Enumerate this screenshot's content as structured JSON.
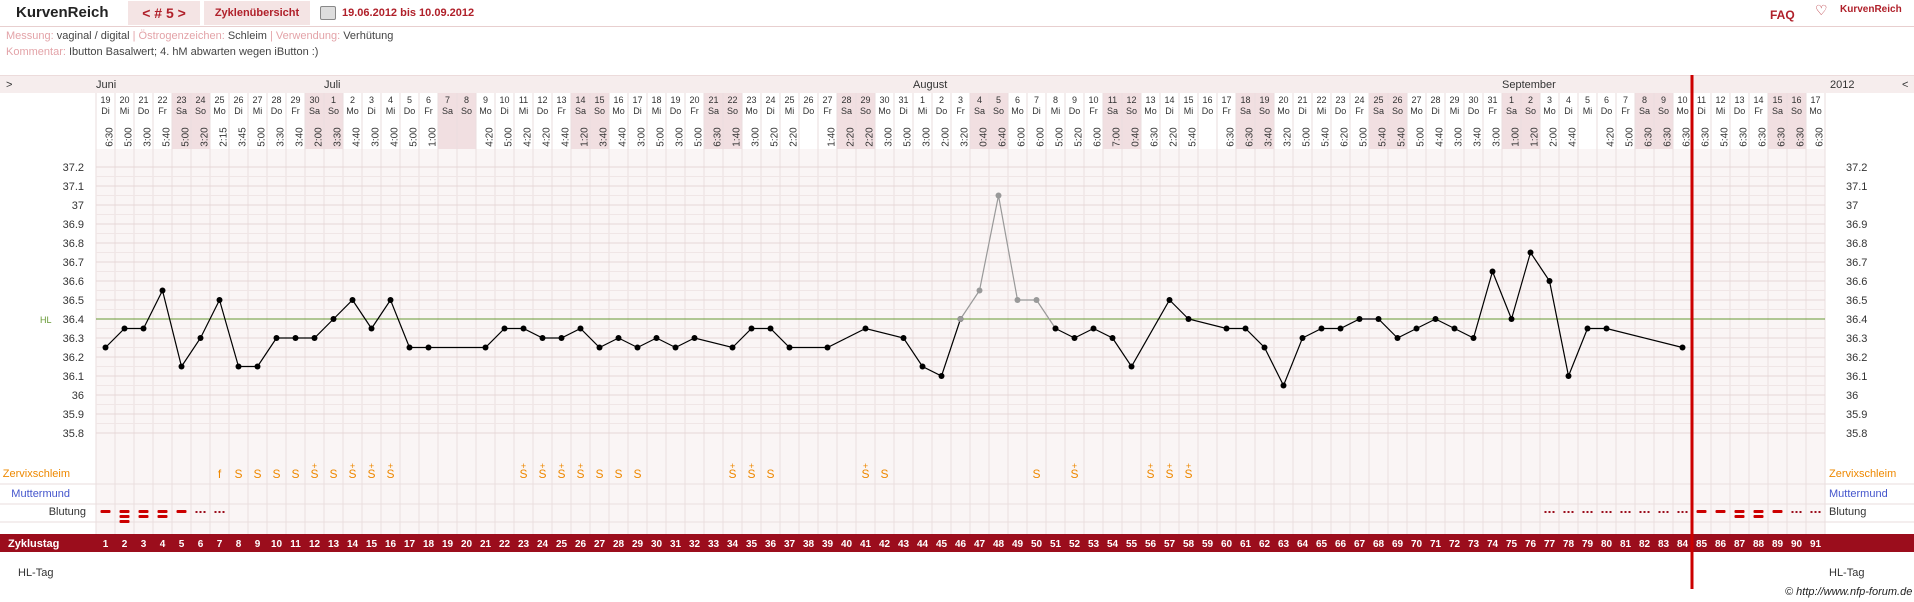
{
  "header": {
    "logo": "KurvenReich",
    "cycle_tab": "< # 5 >",
    "overview_tab": "Zyklenübersicht",
    "date_range": "19.06.2012 bis 10.09.2012",
    "faq": "FAQ",
    "brand": "KurvenReich"
  },
  "meta": {
    "measure_label": "Messung:",
    "measure_value": "vaginal / digital",
    "estrogen_label": "Östrogenzeichen:",
    "estrogen_value": "Schleim",
    "usage_label": "Verwendung:",
    "usage_value": "Verhütung",
    "comment_label": "Kommentar:",
    "comment_value": "Ibutton Basalwert; 4. hM abwarten wegen iButton :)"
  },
  "nav": {
    "prev": ">",
    "next": "<",
    "year": "2012"
  },
  "months": [
    {
      "name": "Juni",
      "index": 0
    },
    {
      "name": "Juli",
      "index": 12
    },
    {
      "name": "August",
      "index": 43
    },
    {
      "name": "September",
      "index": 74
    }
  ],
  "days": [
    "19",
    "20",
    "21",
    "22",
    "23",
    "24",
    "25",
    "26",
    "27",
    "28",
    "29",
    "30",
    "1",
    "2",
    "3",
    "4",
    "5",
    "6",
    "7",
    "8",
    "9",
    "10",
    "11",
    "12",
    "13",
    "14",
    "15",
    "16",
    "17",
    "18",
    "19",
    "20",
    "21",
    "22",
    "23",
    "24",
    "25",
    "26",
    "27",
    "28",
    "29",
    "30",
    "31",
    "1",
    "2",
    "3",
    "4",
    "5",
    "6",
    "7",
    "8",
    "9",
    "10",
    "11",
    "12",
    "13",
    "14",
    "15",
    "16",
    "17",
    "18",
    "19",
    "20",
    "21",
    "22",
    "23",
    "24",
    "25",
    "26",
    "27",
    "28",
    "29",
    "30",
    "31",
    "1",
    "2",
    "3",
    "4",
    "5",
    "6",
    "7",
    "8",
    "9",
    "10",
    "11",
    "12",
    "13",
    "14",
    "15",
    "16",
    "17"
  ],
  "weekdays": [
    "Di",
    "Mi",
    "Do",
    "Fr",
    "Sa",
    "So",
    "Mo",
    "Di",
    "Mi",
    "Do",
    "Fr",
    "Sa",
    "So",
    "Mo",
    "Di",
    "Mi",
    "Do",
    "Fr",
    "Sa",
    "So",
    "Mo",
    "Di",
    "Mi",
    "Do",
    "Fr",
    "Sa",
    "So",
    "Mo",
    "Di",
    "Mi",
    "Do",
    "Fr",
    "Sa",
    "So",
    "Mo",
    "Di",
    "Mi",
    "Do",
    "Fr",
    "Sa",
    "So",
    "Mo",
    "Di",
    "Mi",
    "Do",
    "Fr",
    "Sa",
    "So",
    "Mo",
    "Di",
    "Mi",
    "Do",
    "Fr",
    "Sa",
    "So",
    "Mo",
    "Di",
    "Mi",
    "Do",
    "Fr",
    "Sa",
    "So",
    "Mo",
    "Di",
    "Mi",
    "Do",
    "Fr",
    "Sa",
    "So",
    "Mo",
    "Di",
    "Mi",
    "Do",
    "Fr",
    "Sa",
    "So",
    "Mo",
    "Di",
    "Mi",
    "Do",
    "Fr",
    "Sa",
    "So",
    "Mo",
    "Di",
    "Mi",
    "Do",
    "Fr",
    "Sa",
    "So",
    "Mo"
  ],
  "times": [
    "6:30",
    "5:00",
    "3:00",
    "5:40",
    "5:00",
    "3:20",
    "2:15",
    "3:45",
    "5:00",
    "3:30",
    "3:40",
    "2:00",
    "3:30",
    "4:40",
    "3:00",
    "4:00",
    "5:00",
    "1:00",
    "",
    "",
    "4:20",
    "5:00",
    "4:20",
    "4:20",
    "4:40",
    "1:20",
    "3:40",
    "4:40",
    "3:00",
    "5:00",
    "3:00",
    "5:00",
    "6:30",
    "1:40",
    "3:00",
    "5:20",
    "2:20",
    "",
    "1:40",
    "2:20",
    "2:20",
    "3:00",
    "5:00",
    "3:00",
    "2:00",
    "3:20",
    "0:40",
    "6:40",
    "6:00",
    "6:00",
    "5:00",
    "5:20",
    "6:00",
    "7:00",
    "0:40",
    "6:30",
    "2:20",
    "5:40",
    "",
    "6:30",
    "6:30",
    "3:40",
    "3:20",
    "5:00",
    "5:40",
    "6:20",
    "5:00",
    "5:40",
    "5:40",
    "5:00",
    "4:40",
    "3:00",
    "3:40",
    "3:00",
    "1:00",
    "1:20",
    "2:00",
    "4:40",
    "",
    "4:20",
    "5:00",
    "6:30",
    "6:30",
    "6:30",
    "6:30",
    "5:40",
    "6:30",
    "6:30",
    "6:30",
    "6:30",
    "6:30",
    "6:30",
    "6:30"
  ],
  "labels": {
    "cervix": "Zervixschleim",
    "os": "Muttermund",
    "bleeding": "Blutung",
    "cycle_day": "Zyklustag",
    "hl_day": "HL-Tag",
    "hl": "HL"
  },
  "cycle_days": [
    "1",
    "2",
    "3",
    "4",
    "5",
    "6",
    "7",
    "8",
    "9",
    "10",
    "11",
    "12",
    "13",
    "14",
    "15",
    "16",
    "17",
    "18",
    "19",
    "20",
    "21",
    "22",
    "23",
    "24",
    "25",
    "26",
    "27",
    "28",
    "29",
    "30",
    "31",
    "32",
    "33",
    "34",
    "35",
    "36",
    "37",
    "38",
    "39",
    "40",
    "41",
    "42",
    "43",
    "44",
    "45",
    "46",
    "47",
    "48",
    "49",
    "50",
    "51",
    "52",
    "53",
    "54",
    "55",
    "56",
    "57",
    "58",
    "59",
    "60",
    "61",
    "62",
    "63",
    "64",
    "65",
    "66",
    "67",
    "68",
    "69",
    "70",
    "71",
    "72",
    "73",
    "74",
    "75",
    "76",
    "77",
    "78",
    "79",
    "80",
    "81",
    "82",
    "83",
    "84",
    "85",
    "86",
    "87",
    "88",
    "89",
    "90",
    "91"
  ],
  "mucus": [
    {
      "day": 7,
      "symbol": "f"
    },
    {
      "day": 8,
      "symbol": "S"
    },
    {
      "day": 9,
      "symbol": "S"
    },
    {
      "day": 10,
      "symbol": "S"
    },
    {
      "day": 11,
      "symbol": "S"
    },
    {
      "day": 12,
      "symbol": "S+"
    },
    {
      "day": 13,
      "symbol": "S"
    },
    {
      "day": 14,
      "symbol": "S+"
    },
    {
      "day": 15,
      "symbol": "S+"
    },
    {
      "day": 16,
      "symbol": "S+"
    },
    {
      "day": 23,
      "symbol": "S+"
    },
    {
      "day": 24,
      "symbol": "S+"
    },
    {
      "day": 25,
      "symbol": "S+"
    },
    {
      "day": 26,
      "symbol": "S+"
    },
    {
      "day": 27,
      "symbol": "S"
    },
    {
      "day": 28,
      "symbol": "S"
    },
    {
      "day": 29,
      "symbol": "S"
    },
    {
      "day": 34,
      "symbol": "S+"
    },
    {
      "day": 35,
      "symbol": "S+"
    },
    {
      "day": 36,
      "symbol": "S"
    },
    {
      "day": 41,
      "symbol": "S+"
    },
    {
      "day": 42,
      "symbol": "S"
    },
    {
      "day": 50,
      "symbol": "S"
    },
    {
      "day": 52,
      "symbol": "S+"
    },
    {
      "day": 56,
      "symbol": "S+"
    },
    {
      "day": 57,
      "symbol": "S+"
    },
    {
      "day": 58,
      "symbol": "S+"
    }
  ],
  "bleeding": [
    {
      "day": 1,
      "level": "medium"
    },
    {
      "day": 2,
      "level": "heavy"
    },
    {
      "day": 3,
      "level": "strong"
    },
    {
      "day": 4,
      "level": "strong"
    },
    {
      "day": 5,
      "level": "medium"
    },
    {
      "day": 6,
      "level": "spot"
    },
    {
      "day": 7,
      "level": "spot"
    },
    {
      "day": 77,
      "level": "spot"
    },
    {
      "day": 78,
      "level": "spot"
    },
    {
      "day": 79,
      "level": "spot"
    },
    {
      "day": 80,
      "level": "spot"
    },
    {
      "day": 81,
      "level": "spot"
    },
    {
      "day": 82,
      "level": "spot"
    },
    {
      "day": 83,
      "level": "spot"
    },
    {
      "day": 84,
      "level": "spot"
    },
    {
      "day": 85,
      "level": "medium"
    },
    {
      "day": 86,
      "level": "medium"
    },
    {
      "day": 87,
      "level": "strong"
    },
    {
      "day": 88,
      "level": "strong"
    },
    {
      "day": 89,
      "level": "medium"
    },
    {
      "day": 90,
      "level": "spot"
    },
    {
      "day": 91,
      "level": "spot"
    }
  ],
  "weekend_indices": [
    4,
    5,
    11,
    12,
    18,
    19,
    25,
    26,
    32,
    33,
    39,
    40,
    46,
    47,
    53,
    54,
    60,
    61,
    67,
    68,
    74,
    75,
    81,
    82,
    88,
    89
  ],
  "colors": {
    "accent": "#9b0d1c",
    "line": "#000000",
    "excluded": "#999999",
    "hl": "#669933",
    "mucus": "#ee8800",
    "os": "#4455cc",
    "cursor": "#cc0000"
  },
  "chart_data": {
    "type": "line",
    "title": "",
    "xlabel": "Zyklustag",
    "ylabel": "",
    "ylim": [
      35.8,
      37.2
    ],
    "yticks": [
      "37.2",
      "37.1",
      "37",
      "36.9",
      "36.8",
      "36.7",
      "36.6",
      "36.5",
      "36.4",
      "36.3",
      "36.2",
      "36.1",
      "36",
      "35.9",
      "35.8"
    ],
    "hl": 36.4,
    "today_day": 84,
    "series": [
      {
        "points": [
          [
            1,
            36.25
          ],
          [
            2,
            36.35
          ],
          [
            3,
            36.35
          ],
          [
            4,
            36.55
          ],
          [
            5,
            36.15
          ],
          [
            6,
            36.3
          ],
          [
            7,
            36.5
          ],
          [
            8,
            36.15
          ],
          [
            9,
            36.15
          ],
          [
            10,
            36.3
          ],
          [
            11,
            36.3
          ],
          [
            12,
            36.3
          ],
          [
            13,
            36.4
          ],
          [
            14,
            36.5
          ],
          [
            15,
            36.35
          ],
          [
            16,
            36.5
          ],
          [
            17,
            36.25
          ],
          [
            18,
            36.25
          ],
          [
            21,
            36.25
          ],
          [
            22,
            36.35
          ],
          [
            23,
            36.35
          ],
          [
            24,
            36.3
          ],
          [
            25,
            36.3
          ],
          [
            26,
            36.35
          ],
          [
            27,
            36.25
          ],
          [
            28,
            36.3
          ],
          [
            29,
            36.25
          ],
          [
            30,
            36.3
          ],
          [
            31,
            36.25
          ],
          [
            32,
            36.3
          ],
          [
            34,
            36.25
          ],
          [
            35,
            36.35
          ],
          [
            36,
            36.35
          ],
          [
            37,
            36.25
          ],
          [
            39,
            36.25
          ],
          [
            41,
            36.35
          ],
          [
            43,
            36.3
          ],
          [
            44,
            36.15
          ],
          [
            45,
            36.1
          ],
          [
            46,
            36.4
          ]
        ]
      },
      {
        "excluded": true,
        "points": [
          [
            46,
            36.4
          ],
          [
            47,
            36.55
          ],
          [
            48,
            37.05
          ],
          [
            49,
            36.5
          ],
          [
            50,
            36.5
          ],
          [
            51,
            36.35
          ]
        ]
      },
      {
        "points": [
          [
            51,
            36.35
          ],
          [
            52,
            36.3
          ],
          [
            53,
            36.35
          ],
          [
            54,
            36.3
          ],
          [
            55,
            36.15
          ],
          [
            57,
            36.5
          ],
          [
            58,
            36.4
          ],
          [
            60,
            36.35
          ],
          [
            61,
            36.35
          ],
          [
            62,
            36.25
          ],
          [
            63,
            36.05
          ],
          [
            64,
            36.3
          ],
          [
            65,
            36.35
          ],
          [
            66,
            36.35
          ],
          [
            67,
            36.4
          ],
          [
            68,
            36.4
          ],
          [
            69,
            36.3
          ],
          [
            70,
            36.35
          ],
          [
            71,
            36.4
          ],
          [
            72,
            36.35
          ],
          [
            73,
            36.3
          ],
          [
            74,
            36.65
          ],
          [
            75,
            36.4
          ],
          [
            76,
            36.75
          ],
          [
            77,
            36.6
          ],
          [
            78,
            36.1
          ],
          [
            79,
            36.35
          ],
          [
            80,
            36.35
          ],
          [
            84,
            36.25
          ]
        ]
      }
    ]
  },
  "footer": {
    "credit": "© http://www.nfp-forum.de"
  }
}
